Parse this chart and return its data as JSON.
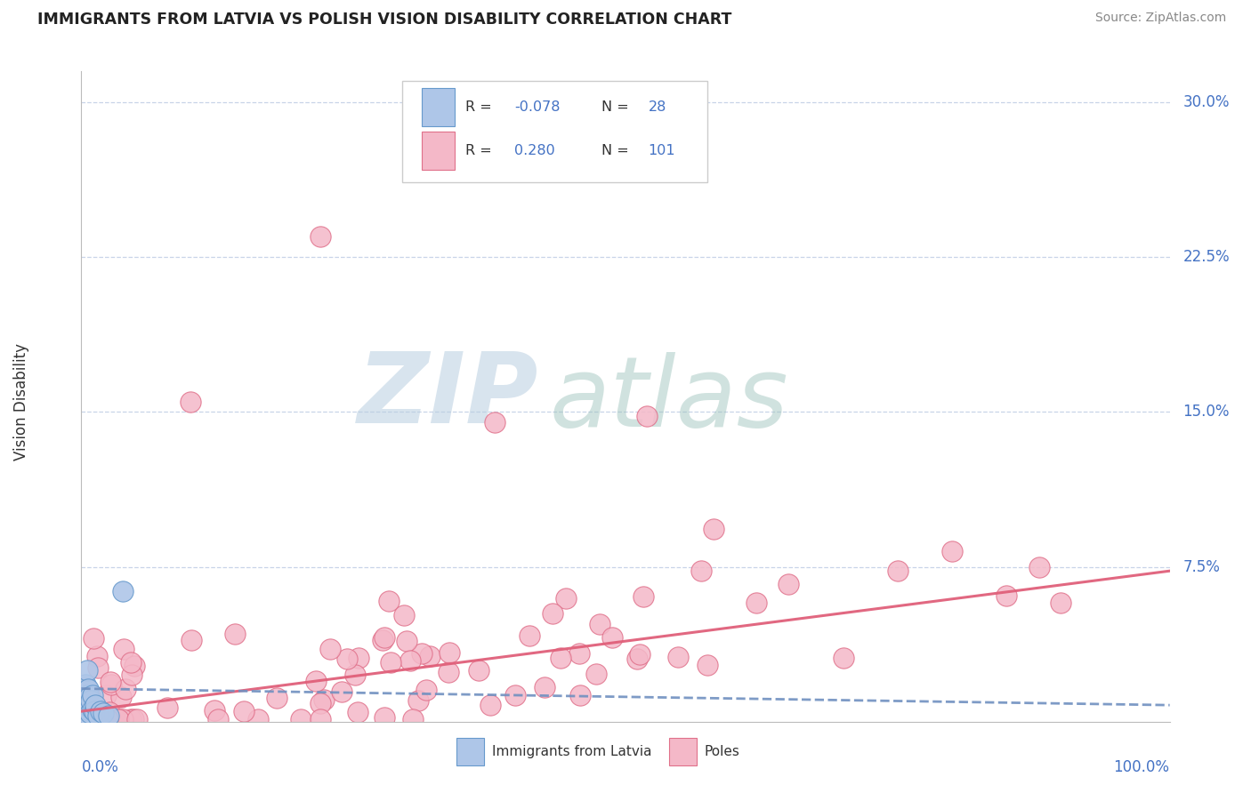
{
  "title": "IMMIGRANTS FROM LATVIA VS POLISH VISION DISABILITY CORRELATION CHART",
  "source": "Source: ZipAtlas.com",
  "ylabel": "Vision Disability",
  "color_blue_fill": "#aec6e8",
  "color_blue_edge": "#6699cc",
  "color_pink_fill": "#f4b8c8",
  "color_pink_edge": "#e0708a",
  "color_blue_line": "#7090c0",
  "color_pink_line": "#e0607a",
  "color_blue_text": "#4472c4",
  "color_grid": "#c8d4e8",
  "background": "#ffffff",
  "title_color": "#222222",
  "source_color": "#888888",
  "label_color": "#333333",
  "blue_slope": -0.008,
  "blue_intercept": 0.016,
  "pink_slope": 0.068,
  "pink_intercept": 0.005
}
